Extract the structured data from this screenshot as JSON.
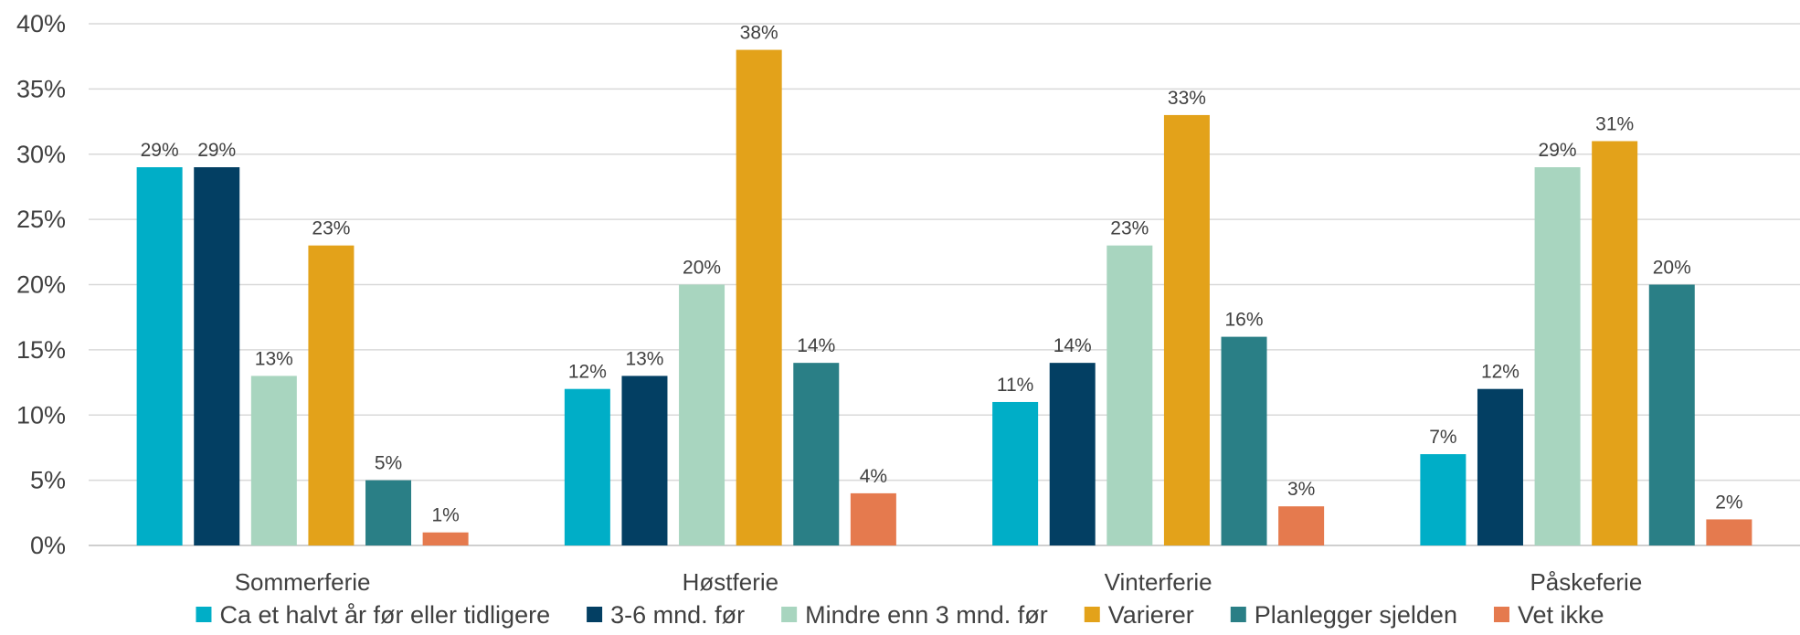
{
  "chart_data": {
    "type": "bar",
    "categories": [
      "Sommerferie",
      "Høstferie",
      "Vinterferie",
      "Påskeferie"
    ],
    "series": [
      {
        "name": "Ca et halvt år før eller tidligere",
        "values": [
          29,
          12,
          11,
          7
        ],
        "color": "#00AEC7"
      },
      {
        "name": "3-6 mnd. før",
        "values": [
          29,
          13,
          14,
          12
        ],
        "color": "#033F63"
      },
      {
        "name": "Mindre enn 3 mnd. før",
        "values": [
          13,
          20,
          23,
          29
        ],
        "color": "#A8D5BF"
      },
      {
        "name": "Varierer",
        "values": [
          23,
          38,
          33,
          31
        ],
        "color": "#E3A21A"
      },
      {
        "name": "Planlegger sjelden",
        "values": [
          5,
          14,
          16,
          20
        ],
        "color": "#2A7F86"
      },
      {
        "name": "Vet ikke",
        "values": [
          1,
          4,
          3,
          2
        ],
        "color": "#E57A4E"
      }
    ],
    "ylim": [
      0,
      40
    ],
    "yticks": [
      0,
      5,
      10,
      15,
      20,
      25,
      30,
      35,
      40
    ],
    "value_suffix": "%",
    "grid": true,
    "gridline_color": "#D9D9D9",
    "legend_position": "bottom"
  }
}
